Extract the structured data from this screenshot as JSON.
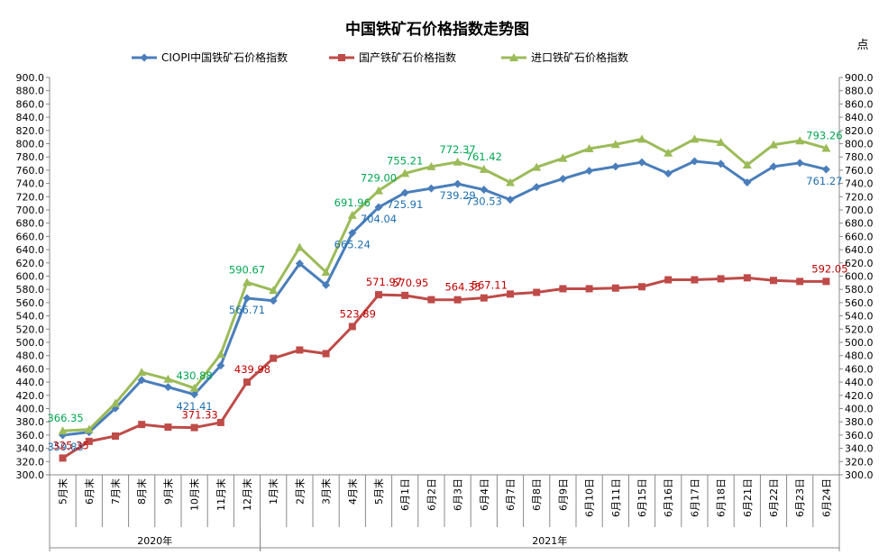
{
  "chart_data": {
    "type": "line",
    "title": "中国铁矿石价格指数走势图",
    "y_unit_label": "点",
    "ylim": [
      300,
      900
    ],
    "y_tick_step": 20,
    "grid": false,
    "legend_position": "top",
    "categories": [
      "5月末",
      "6月末",
      "7月末",
      "8月末",
      "9月末",
      "10月末",
      "11月末",
      "12月末",
      "1月末",
      "2月末",
      "3月末",
      "4月末",
      "5月末",
      "6月1日",
      "6月2日",
      "6月3日",
      "6月4日",
      "6月7日",
      "6月8日",
      "6月9日",
      "6月10日",
      "6月11日",
      "6月15日",
      "6月16日",
      "6月17日",
      "6月18日",
      "6月21日",
      "6月22日",
      "6月23日",
      "6月24日"
    ],
    "category_groups": [
      {
        "label": "2020年",
        "start": 0,
        "end": 7
      },
      {
        "label": "2021年",
        "start": 8,
        "end": 29
      }
    ],
    "series": [
      {
        "name": "CIOPI中国铁矿石价格指数",
        "color": "#4a7ebb",
        "label_color": "#1f6fb0",
        "marker": "diamond",
        "values": [
          359.83,
          364.5,
          400.5,
          443.0,
          432.5,
          421.41,
          465.0,
          566.71,
          563.0,
          619.0,
          586.5,
          665.24,
          704.04,
          725.91,
          732.5,
          739.29,
          730.53,
          715.5,
          734.5,
          747.0,
          759.0,
          765.5,
          772.0,
          755.0,
          773.5,
          769.5,
          741.5,
          765.5,
          771.0,
          761.27
        ],
        "labels": [
          {
            "index": 0,
            "text": "359.83"
          },
          {
            "index": 5,
            "text": "421.41"
          },
          {
            "index": 7,
            "text": "566.71"
          },
          {
            "index": 11,
            "text": "665.24"
          },
          {
            "index": 12,
            "text": "704.04"
          },
          {
            "index": 13,
            "text": "725.91"
          },
          {
            "index": 15,
            "text": "739.29"
          },
          {
            "index": 16,
            "text": "730.53"
          },
          {
            "index": 29,
            "text": "761.27"
          }
        ]
      },
      {
        "name": "国产铁矿石价格指数",
        "color": "#be4b48",
        "label_color": "#c00000",
        "marker": "square",
        "values": [
          325.35,
          350.5,
          358.5,
          376.0,
          372.0,
          371.33,
          379.0,
          439.98,
          476.0,
          488.5,
          483.0,
          523.89,
          571.97,
          570.95,
          564.5,
          564.35,
          567.11,
          573.0,
          575.5,
          581.0,
          581.0,
          582.0,
          584.0,
          594.5,
          594.5,
          596.0,
          597.5,
          593.5,
          592.0,
          592.05
        ],
        "labels": [
          {
            "index": 0,
            "text": "325.35"
          },
          {
            "index": 5,
            "text": "371.33"
          },
          {
            "index": 7,
            "text": "439.98"
          },
          {
            "index": 11,
            "text": "523.89"
          },
          {
            "index": 12,
            "text": "571.97"
          },
          {
            "index": 13,
            "text": "570.95"
          },
          {
            "index": 15,
            "text": "564.35"
          },
          {
            "index": 16,
            "text": "567.11"
          },
          {
            "index": 29,
            "text": "592.05"
          }
        ]
      },
      {
        "name": "进口铁矿石价格指数",
        "color": "#9bbb59",
        "label_color": "#00a651",
        "marker": "triangle",
        "values": [
          366.35,
          368.5,
          408.0,
          455.0,
          444.5,
          430.88,
          482.0,
          590.67,
          578.5,
          643.5,
          606.0,
          691.96,
          729.0,
          755.21,
          765.5,
          772.37,
          761.42,
          741.5,
          764.5,
          778.0,
          792.5,
          799.0,
          807.0,
          786.0,
          807.0,
          802.0,
          768.0,
          798.5,
          804.5,
          793.26
        ],
        "labels": [
          {
            "index": 0,
            "text": "366.35"
          },
          {
            "index": 5,
            "text": "430.88"
          },
          {
            "index": 7,
            "text": "590.67"
          },
          {
            "index": 11,
            "text": "691.96"
          },
          {
            "index": 12,
            "text": "729.00"
          },
          {
            "index": 13,
            "text": "755.21"
          },
          {
            "index": 15,
            "text": "772.37"
          },
          {
            "index": 16,
            "text": "761.42"
          },
          {
            "index": 29,
            "text": "793.26"
          }
        ]
      }
    ]
  }
}
